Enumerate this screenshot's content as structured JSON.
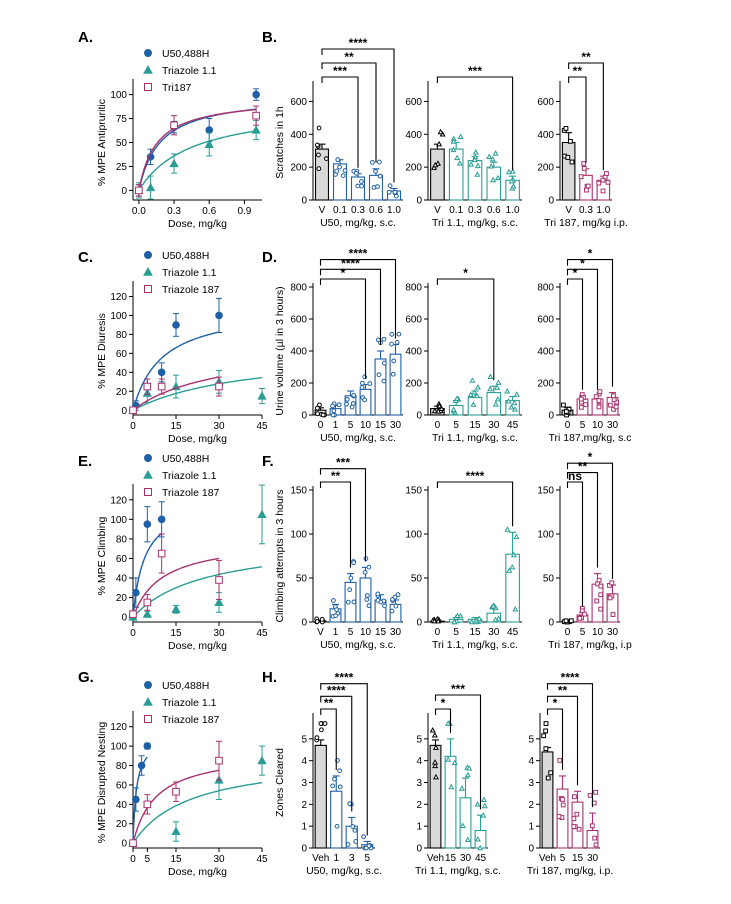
{
  "colors": {
    "u50": "#1f5fa6",
    "tri11": "#2a9d95",
    "tri187": "#a8326e"
  },
  "chart_data": [
    {
      "id": "A",
      "type": "scatter",
      "letter": "A.",
      "xlabel": "Dose, mg/kg",
      "ylabel": "% MPE Antipruritic",
      "xlim": [
        -0.05,
        1.05
      ],
      "ylim": [
        -10,
        110
      ],
      "xticks": [
        0.0,
        0.3,
        0.6,
        0.9
      ],
      "xtick_labels": [
        "0.0",
        "0.3",
        "0.6",
        "0.9"
      ],
      "yticks": [
        0,
        25,
        50,
        75,
        100
      ],
      "ytick_labels": [
        "0",
        "25",
        "50",
        "75",
        "100"
      ],
      "legend": [
        "U50,488H",
        "Triazole 1.1",
        "Tri187"
      ],
      "series": [
        {
          "name": "U50,488H",
          "color": "u50",
          "marker": "circle",
          "x": [
            0,
            0.1,
            0.3,
            0.6,
            1.0
          ],
          "y": [
            0,
            35,
            66,
            63,
            100
          ],
          "err": [
            6,
            8,
            6,
            12,
            6
          ],
          "curve": {
            "emax": 100,
            "ec50": 0.18
          }
        },
        {
          "name": "Triazole 1.1",
          "color": "tri11",
          "marker": "triangle",
          "x": [
            0,
            0.1,
            0.3,
            0.6,
            1.0
          ],
          "y": [
            0,
            3,
            28,
            48,
            63
          ],
          "err": [
            8,
            12,
            10,
            12,
            10
          ],
          "curve": {
            "emax": 90,
            "ec50": 0.45
          }
        },
        {
          "name": "Tri187",
          "color": "tri187",
          "marker": "square",
          "x": [
            0,
            0.3,
            1.0
          ],
          "y": [
            0,
            68,
            78
          ],
          "err": [
            6,
            10,
            10
          ],
          "curve": {
            "emax": 97,
            "ec50": 0.15
          }
        }
      ]
    },
    {
      "id": "B",
      "type": "bar",
      "letter": "B.",
      "ylabel": "Scratches in 1h",
      "ylim": [
        0,
        700
      ],
      "yticks": [
        0,
        200,
        400,
        600
      ],
      "ytick_labels": [
        "0",
        "200",
        "400",
        "600"
      ],
      "groups": [
        {
          "xlabel": "U50, mg/kg, s.c.",
          "color": "u50",
          "marker": "circle",
          "categories": [
            "V",
            "0.1",
            "0.3",
            "0.6",
            "1.0"
          ],
          "values": [
            310,
            220,
            140,
            150,
            55
          ],
          "err": [
            30,
            25,
            20,
            40,
            15
          ],
          "sig": [
            {
              "to": 2,
              "label": "***"
            },
            {
              "to": 3,
              "label": "**"
            },
            {
              "to": 4,
              "label": "****"
            }
          ]
        },
        {
          "xlabel": "Tri 1.1, mg/kg, s.c.",
          "color": "tri11",
          "marker": "triangle",
          "categories": [
            "V",
            "0.1",
            "0.3",
            "0.6",
            "1.0"
          ],
          "values": [
            310,
            310,
            240,
            200,
            120
          ],
          "err": [
            30,
            40,
            25,
            30,
            25
          ],
          "sig": [
            {
              "to": 4,
              "label": "***"
            }
          ]
        },
        {
          "xlabel": "Tri 187, mg/kg i.p.",
          "color": "tri187",
          "marker": "square",
          "categories": [
            "V",
            "0.3",
            "1.0"
          ],
          "values": [
            350,
            150,
            120
          ],
          "err": [
            60,
            40,
            25
          ],
          "sig": [
            {
              "to": 1,
              "label": "**"
            },
            {
              "to": 2,
              "label": "**"
            }
          ]
        }
      ]
    },
    {
      "id": "C",
      "type": "scatter",
      "letter": "C.",
      "xlabel": "Dose, mg/kg",
      "ylabel": "% MPE Diuresis",
      "xlim": [
        0,
        45
      ],
      "ylim": [
        -5,
        130
      ],
      "xticks": [
        0,
        15,
        30,
        45
      ],
      "xtick_labels": [
        "0",
        "15",
        "30",
        "45"
      ],
      "yticks": [
        0,
        20,
        40,
        60,
        80,
        100,
        120
      ],
      "ytick_labels": [
        "0",
        "20",
        "40",
        "60",
        "80",
        "100",
        "120"
      ],
      "legend": [
        "U50,488H",
        "Triazole 1.1",
        "Triazole 187"
      ],
      "series": [
        {
          "name": "U50,488H",
          "color": "u50",
          "marker": "circle",
          "x": [
            0,
            1,
            5,
            10,
            15,
            30
          ],
          "y": [
            0,
            5,
            25,
            40,
            90,
            100
          ],
          "err": [
            3,
            5,
            8,
            10,
            12,
            18
          ],
          "curve": {
            "emax": 110,
            "ec50": 10
          }
        },
        {
          "name": "Triazole 1.1",
          "color": "tri11",
          "marker": "triangle",
          "x": [
            0,
            5,
            15,
            30,
            45
          ],
          "y": [
            0,
            18,
            25,
            30,
            15
          ],
          "err": [
            3,
            10,
            12,
            12,
            8
          ],
          "curve": {
            "emax": 65,
            "ec50": 40
          }
        },
        {
          "name": "Triazole 187",
          "color": "tri187",
          "marker": "square",
          "x": [
            0,
            5,
            10,
            30
          ],
          "y": [
            0,
            25,
            25,
            25
          ],
          "err": [
            3,
            8,
            8,
            10
          ],
          "curve": {
            "emax": 70,
            "ec50": 30
          }
        }
      ]
    },
    {
      "id": "D",
      "type": "bar",
      "letter": "D.",
      "ylabel": "Urine volume (µl in 3 hours)",
      "ylim": [
        0,
        800
      ],
      "yticks": [
        0,
        200,
        400,
        600,
        800
      ],
      "ytick_labels": [
        "0",
        "200",
        "400",
        "600",
        "800"
      ],
      "groups": [
        {
          "xlabel": "U50, mg/kg, s.c.",
          "color": "u50",
          "marker": "circle",
          "categories": [
            "0",
            "1",
            "5",
            "10",
            "15",
            "30"
          ],
          "values": [
            30,
            40,
            120,
            160,
            350,
            380
          ],
          "err": [
            15,
            20,
            30,
            30,
            50,
            60
          ],
          "sig": [
            {
              "to": 3,
              "label": "*"
            },
            {
              "to": 4,
              "label": "****"
            },
            {
              "to": 5,
              "label": "****"
            }
          ]
        },
        {
          "xlabel": "Tri 1.1, mg/kg, s.c.",
          "color": "tri11",
          "marker": "triangle",
          "categories": [
            "0",
            "5",
            "15",
            "30",
            "45"
          ],
          "values": [
            40,
            60,
            110,
            140,
            90
          ],
          "err": [
            15,
            30,
            40,
            40,
            25
          ],
          "sig": [
            {
              "to": 3,
              "label": "*"
            }
          ]
        },
        {
          "xlabel": "Tri 187,mg/kg, s.c",
          "color": "tri187",
          "marker": "square",
          "categories": [
            "0",
            "5",
            "10",
            "30"
          ],
          "values": [
            30,
            100,
            100,
            110
          ],
          "err": [
            15,
            20,
            20,
            30
          ],
          "sig": [
            {
              "to": 1,
              "label": "*"
            },
            {
              "to": 2,
              "label": "*"
            },
            {
              "to": 3,
              "label": "*"
            }
          ]
        }
      ]
    },
    {
      "id": "E",
      "type": "scatter",
      "letter": "E.",
      "xlabel": "Dose, mg/kg",
      "ylabel": "% MPE Climbing",
      "xlim": [
        0,
        45
      ],
      "ylim": [
        -5,
        130
      ],
      "xticks": [
        0,
        15,
        30,
        45
      ],
      "xtick_labels": [
        "0",
        "15",
        "30",
        "45"
      ],
      "yticks": [
        0,
        20,
        40,
        60,
        80,
        100,
        120
      ],
      "ytick_labels": [
        "0",
        "20",
        "40",
        "60",
        "80",
        "100",
        "120"
      ],
      "legend": [
        "U50,488H",
        "Triazole 1.1",
        "Triazole 187"
      ],
      "series": [
        {
          "name": "U50,488H",
          "color": "u50",
          "marker": "circle",
          "x": [
            0,
            1,
            5,
            10
          ],
          "y": [
            3,
            25,
            95,
            100
          ],
          "err": [
            3,
            15,
            18,
            18
          ],
          "curve": {
            "emax": 120,
            "ec50": 4
          }
        },
        {
          "name": "Triazole 1.1",
          "color": "tri11",
          "marker": "triangle",
          "x": [
            0,
            5,
            15,
            30,
            45
          ],
          "y": [
            0,
            3,
            8,
            15,
            105
          ],
          "err": [
            3,
            3,
            4,
            10,
            30
          ],
          "curve": {
            "emax": 80,
            "ec50": 25
          }
        },
        {
          "name": "Triazole 187",
          "color": "tri187",
          "marker": "square",
          "x": [
            0,
            5,
            10,
            30
          ],
          "y": [
            3,
            15,
            65,
            38
          ],
          "err": [
            3,
            8,
            20,
            20
          ],
          "curve": {
            "emax": 80,
            "ec50": 10
          }
        }
      ]
    },
    {
      "id": "F",
      "type": "bar",
      "letter": "F.",
      "ylabel": "Climbing attempts in 3 hours",
      "ylim": [
        0,
        150
      ],
      "yticks": [
        0,
        50,
        100,
        150
      ],
      "ytick_labels": [
        "0",
        "50",
        "100",
        "150"
      ],
      "groups": [
        {
          "xlabel": "U50, mg/kg, s.c.",
          "color": "u50",
          "marker": "circle",
          "categories": [
            "V",
            "1",
            "5",
            "10",
            "15",
            "30"
          ],
          "values": [
            1,
            15,
            45,
            50,
            25,
            20
          ],
          "err": [
            1,
            5,
            10,
            12,
            6,
            5
          ],
          "sig": [
            {
              "to": 2,
              "label": "**"
            },
            {
              "to": 3,
              "label": "***"
            }
          ]
        },
        {
          "xlabel": "Tri 1.1, mg/kg, s.c.",
          "color": "tri11",
          "marker": "triangle",
          "categories": [
            "0",
            "5",
            "15",
            "30",
            "45"
          ],
          "values": [
            1,
            3,
            3,
            10,
            77
          ],
          "err": [
            1,
            2,
            2,
            5,
            25
          ],
          "sig": [
            {
              "to": 4,
              "label": "****"
            }
          ]
        },
        {
          "xlabel": "Tri 187, mg/kg, i.p",
          "color": "tri187",
          "marker": "square",
          "categories": [
            "0",
            "5",
            "10",
            "30"
          ],
          "values": [
            1,
            8,
            43,
            32
          ],
          "err": [
            1,
            3,
            12,
            10
          ],
          "sig": [
            {
              "to": 1,
              "label": "ns"
            },
            {
              "to": 2,
              "label": "**"
            },
            {
              "to": 3,
              "label": "*"
            }
          ]
        }
      ]
    },
    {
      "id": "G",
      "type": "scatter",
      "letter": "G.",
      "xlabel": "Dose, mg/kg",
      "ylabel": "% MPE Disrupted Nesting",
      "xlim": [
        0,
        45
      ],
      "ylim": [
        -5,
        130
      ],
      "xticks": [
        0,
        5,
        15,
        30,
        45
      ],
      "xtick_labels": [
        "0",
        "5",
        "15",
        "30",
        "45"
      ],
      "yticks": [
        0,
        20,
        40,
        60,
        80,
        100,
        120
      ],
      "ytick_labels": [
        "0",
        "20",
        "40",
        "60",
        "80",
        "100",
        "120"
      ],
      "legend": [
        "U50,488H",
        "Triazole 1.1",
        "Triazole 187"
      ],
      "series": [
        {
          "name": "U50,488H",
          "color": "u50",
          "marker": "circle",
          "x": [
            0,
            1,
            3,
            5
          ],
          "y": [
            0,
            45,
            80,
            100
          ],
          "err": [
            3,
            12,
            10,
            3
          ],
          "curve": {
            "emax": 110,
            "ec50": 1.2
          }
        },
        {
          "name": "Triazole 1.1",
          "color": "tri11",
          "marker": "triangle",
          "x": [
            0,
            15,
            30,
            45
          ],
          "y": [
            0,
            12,
            65,
            85
          ],
          "err": [
            3,
            10,
            20,
            15
          ],
          "curve": {
            "emax": 90,
            "ec50": 20
          }
        },
        {
          "name": "Triazole 187",
          "color": "tri187",
          "marker": "square",
          "x": [
            0,
            5,
            15,
            30
          ],
          "y": [
            0,
            40,
            53,
            85
          ],
          "err": [
            3,
            10,
            10,
            20
          ],
          "curve": {
            "emax": 95,
            "ec50": 8
          }
        }
      ]
    },
    {
      "id": "H",
      "type": "bar",
      "letter": "H.",
      "ylabel": "Zones Cleared",
      "ylim": [
        0,
        6
      ],
      "yticks": [
        0,
        1,
        2,
        3,
        4,
        5
      ],
      "ytick_labels": [
        "0",
        "1",
        "2",
        "3",
        "4",
        "5"
      ],
      "groups": [
        {
          "xlabel": "U50, mg/kg, s.c.",
          "color": "u50",
          "marker": "circle",
          "categories": [
            "Veh",
            "1",
            "3",
            "5"
          ],
          "values": [
            4.7,
            2.6,
            1.0,
            0.15
          ],
          "err": [
            0.25,
            0.7,
            0.4,
            0.15
          ],
          "sig": [
            {
              "to": 1,
              "label": "**"
            },
            {
              "to": 2,
              "label": "****"
            },
            {
              "to": 3,
              "label": "****"
            }
          ]
        },
        {
          "xlabel": "Tri 1.1, mg/kg, s.c.",
          "color": "tri11",
          "marker": "triangle",
          "categories": [
            "Veh",
            "15",
            "30",
            "45"
          ],
          "values": [
            4.7,
            4.2,
            2.3,
            0.8
          ],
          "err": [
            0.25,
            0.8,
            0.9,
            0.7
          ],
          "sig": [
            {
              "to": 1,
              "label": "*"
            },
            {
              "to": 3,
              "label": "***"
            }
          ]
        },
        {
          "xlabel": "Tri 187, mg/kg, i.p.",
          "color": "tri187",
          "marker": "square",
          "categories": [
            "Veh",
            "5",
            "15",
            "30"
          ],
          "values": [
            4.4,
            2.7,
            2.1,
            0.8
          ],
          "err": [
            0.2,
            0.6,
            0.5,
            0.8
          ],
          "sig": [
            {
              "to": 1,
              "label": "*"
            },
            {
              "to": 2,
              "label": "**"
            },
            {
              "to": 3,
              "label": "****"
            }
          ]
        }
      ]
    }
  ]
}
